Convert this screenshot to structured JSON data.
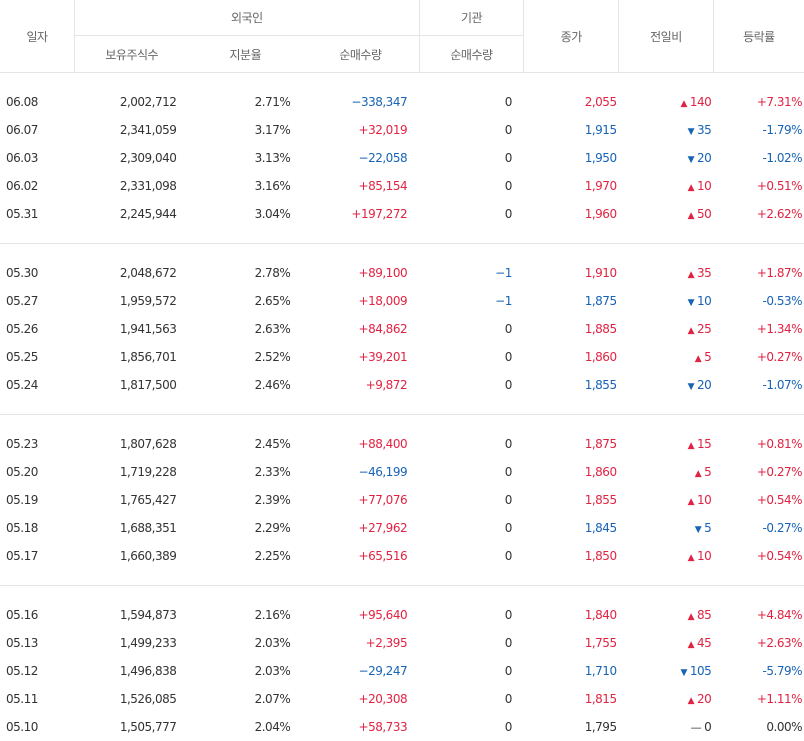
{
  "header": {
    "date": "일자",
    "foreign": "외국인",
    "institution": "기관",
    "close": "종가",
    "change": "전일비",
    "rate": "등락률",
    "held": "보유주식수",
    "ratio": "지분율",
    "net_foreign": "순매수량",
    "net_inst": "순매수량"
  },
  "colors": {
    "up": "#e12343",
    "down": "#1763b6",
    "flat": "#333333"
  },
  "groups": [
    [
      {
        "date": "06.08",
        "held": "2,002,712",
        "ratio": "2.71%",
        "net": "−338,347",
        "net_dir": "down",
        "inst": "0",
        "inst_dir": "flat",
        "close": "2,055",
        "dir": "up",
        "change": "140",
        "rate": "+7.31%"
      },
      {
        "date": "06.07",
        "held": "2,341,059",
        "ratio": "3.17%",
        "net": "+32,019",
        "net_dir": "up",
        "inst": "0",
        "inst_dir": "flat",
        "close": "1,915",
        "dir": "down",
        "change": "35",
        "rate": "-1.79%"
      },
      {
        "date": "06.03",
        "held": "2,309,040",
        "ratio": "3.13%",
        "net": "−22,058",
        "net_dir": "down",
        "inst": "0",
        "inst_dir": "flat",
        "close": "1,950",
        "dir": "down",
        "change": "20",
        "rate": "-1.02%"
      },
      {
        "date": "06.02",
        "held": "2,331,098",
        "ratio": "3.16%",
        "net": "+85,154",
        "net_dir": "up",
        "inst": "0",
        "inst_dir": "flat",
        "close": "1,970",
        "dir": "up",
        "change": "10",
        "rate": "+0.51%"
      },
      {
        "date": "05.31",
        "held": "2,245,944",
        "ratio": "3.04%",
        "net": "+197,272",
        "net_dir": "up",
        "inst": "0",
        "inst_dir": "flat",
        "close": "1,960",
        "dir": "up",
        "change": "50",
        "rate": "+2.62%"
      }
    ],
    [
      {
        "date": "05.30",
        "held": "2,048,672",
        "ratio": "2.78%",
        "net": "+89,100",
        "net_dir": "up",
        "inst": "−1",
        "inst_dir": "down",
        "close": "1,910",
        "dir": "up",
        "change": "35",
        "rate": "+1.87%"
      },
      {
        "date": "05.27",
        "held": "1,959,572",
        "ratio": "2.65%",
        "net": "+18,009",
        "net_dir": "up",
        "inst": "−1",
        "inst_dir": "down",
        "close": "1,875",
        "dir": "down",
        "change": "10",
        "rate": "-0.53%"
      },
      {
        "date": "05.26",
        "held": "1,941,563",
        "ratio": "2.63%",
        "net": "+84,862",
        "net_dir": "up",
        "inst": "0",
        "inst_dir": "flat",
        "close": "1,885",
        "dir": "up",
        "change": "25",
        "rate": "+1.34%"
      },
      {
        "date": "05.25",
        "held": "1,856,701",
        "ratio": "2.52%",
        "net": "+39,201",
        "net_dir": "up",
        "inst": "0",
        "inst_dir": "flat",
        "close": "1,860",
        "dir": "up",
        "change": "5",
        "rate": "+0.27%"
      },
      {
        "date": "05.24",
        "held": "1,817,500",
        "ratio": "2.46%",
        "net": "+9,872",
        "net_dir": "up",
        "inst": "0",
        "inst_dir": "flat",
        "close": "1,855",
        "dir": "down",
        "change": "20",
        "rate": "-1.07%"
      }
    ],
    [
      {
        "date": "05.23",
        "held": "1,807,628",
        "ratio": "2.45%",
        "net": "+88,400",
        "net_dir": "up",
        "inst": "0",
        "inst_dir": "flat",
        "close": "1,875",
        "dir": "up",
        "change": "15",
        "rate": "+0.81%"
      },
      {
        "date": "05.20",
        "held": "1,719,228",
        "ratio": "2.33%",
        "net": "−46,199",
        "net_dir": "down",
        "inst": "0",
        "inst_dir": "flat",
        "close": "1,860",
        "dir": "up",
        "change": "5",
        "rate": "+0.27%"
      },
      {
        "date": "05.19",
        "held": "1,765,427",
        "ratio": "2.39%",
        "net": "+77,076",
        "net_dir": "up",
        "inst": "0",
        "inst_dir": "flat",
        "close": "1,855",
        "dir": "up",
        "change": "10",
        "rate": "+0.54%"
      },
      {
        "date": "05.18",
        "held": "1,688,351",
        "ratio": "2.29%",
        "net": "+27,962",
        "net_dir": "up",
        "inst": "0",
        "inst_dir": "flat",
        "close": "1,845",
        "dir": "down",
        "change": "5",
        "rate": "-0.27%"
      },
      {
        "date": "05.17",
        "held": "1,660,389",
        "ratio": "2.25%",
        "net": "+65,516",
        "net_dir": "up",
        "inst": "0",
        "inst_dir": "flat",
        "close": "1,850",
        "dir": "up",
        "change": "10",
        "rate": "+0.54%"
      }
    ],
    [
      {
        "date": "05.16",
        "held": "1,594,873",
        "ratio": "2.16%",
        "net": "+95,640",
        "net_dir": "up",
        "inst": "0",
        "inst_dir": "flat",
        "close": "1,840",
        "dir": "up",
        "change": "85",
        "rate": "+4.84%"
      },
      {
        "date": "05.13",
        "held": "1,499,233",
        "ratio": "2.03%",
        "net": "+2,395",
        "net_dir": "up",
        "inst": "0",
        "inst_dir": "flat",
        "close": "1,755",
        "dir": "up",
        "change": "45",
        "rate": "+2.63%"
      },
      {
        "date": "05.12",
        "held": "1,496,838",
        "ratio": "2.03%",
        "net": "−29,247",
        "net_dir": "down",
        "inst": "0",
        "inst_dir": "flat",
        "close": "1,710",
        "dir": "down",
        "change": "105",
        "rate": "-5.79%"
      },
      {
        "date": "05.11",
        "held": "1,526,085",
        "ratio": "2.07%",
        "net": "+20,308",
        "net_dir": "up",
        "inst": "0",
        "inst_dir": "flat",
        "close": "1,815",
        "dir": "up",
        "change": "20",
        "rate": "+1.11%"
      },
      {
        "date": "05.10",
        "held": "1,505,777",
        "ratio": "2.04%",
        "net": "+58,733",
        "net_dir": "up",
        "inst": "0",
        "inst_dir": "flat",
        "close": "1,795",
        "dir": "flat",
        "change": "0",
        "rate": "0.00%"
      }
    ]
  ]
}
